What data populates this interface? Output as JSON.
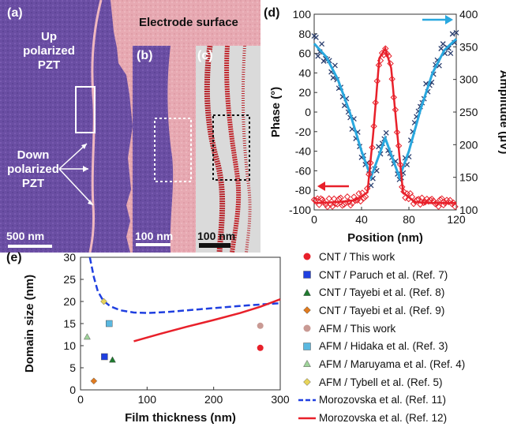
{
  "panels": {
    "a": {
      "label": "(a)",
      "up_text": "Up\npolarized\nPZT",
      "down_text": "Down\npolarized\nPZT",
      "electrode_text": "Electrode surface",
      "scale": "500 nm"
    },
    "b": {
      "label": "(b)",
      "scale": "100 nm"
    },
    "c": {
      "label": "(c)",
      "scale": "100 nm"
    },
    "d": {
      "label": "(d)"
    },
    "e": {
      "label": "(e)"
    }
  },
  "chart_data": [
    {
      "panel": "d",
      "type": "scatter",
      "xlabel": "Position (nm)",
      "ylabel_left": "Phase (°)",
      "ylabel_right": "Amplitude (μV)",
      "xlim": [
        0,
        120
      ],
      "ylim_left": [
        -100,
        100
      ],
      "ylim_right": [
        100,
        400
      ],
      "xticks": [
        "0",
        "40",
        "80",
        "120"
      ],
      "yticks_left": [
        "100",
        "80",
        "60",
        "40",
        "20",
        "0",
        "-20",
        "-40",
        "-60",
        "-80",
        "-100"
      ],
      "yticks_right": [
        "400",
        "350",
        "300",
        "250",
        "200",
        "150",
        "100"
      ],
      "series": [
        {
          "axis": "left",
          "color": "#e8202a",
          "marker": "diamond-open",
          "fit_x": [
            0,
            20,
            35,
            45,
            50,
            55,
            60,
            65,
            70,
            75,
            85,
            100,
            120
          ],
          "fit_y": [
            -93,
            -92,
            -90,
            -82,
            -20,
            55,
            65,
            45,
            -20,
            -82,
            -92,
            -93,
            -93
          ]
        },
        {
          "axis": "right",
          "color": "#2a3e6e",
          "marker": "x",
          "fit_color": "#29a8df",
          "fit_x": [
            0,
            10,
            20,
            30,
            40,
            48,
            54,
            60,
            66,
            72,
            80,
            90,
            100,
            110,
            120
          ],
          "fit_y": [
            355,
            335,
            300,
            250,
            190,
            150,
            180,
            210,
            180,
            150,
            190,
            255,
            310,
            345,
            362
          ]
        }
      ]
    },
    {
      "panel": "e",
      "type": "scatter",
      "xlabel": "Film thickness (nm)",
      "ylabel": "Domain size (nm)",
      "xlim": [
        0,
        300
      ],
      "ylim": [
        0,
        30
      ],
      "xticks": [
        "0",
        "100",
        "200",
        "300"
      ],
      "yticks": [
        "30",
        "25",
        "20",
        "15",
        "10",
        "5",
        "0"
      ],
      "points": [
        {
          "legend": "CNT / This work",
          "marker": "circle",
          "color": "#e8202a",
          "x": 270,
          "y": 9.5
        },
        {
          "legend": "CNT / Paruch et al. (Ref. 7)",
          "marker": "square",
          "color": "#1f3fe0",
          "x": 36,
          "y": 7.5
        },
        {
          "legend": "CNT / Tayebi et al. (Ref. 8)",
          "marker": "triangle",
          "color": "#1e7b2e",
          "x": 48,
          "y": 6.8
        },
        {
          "legend": "CNT / Tayebi et al. (Ref. 9)",
          "marker": "diamond",
          "color": "#e07b20",
          "x": 20,
          "y": 2
        },
        {
          "legend": "AFM / This work",
          "marker": "circle",
          "color": "#c99a94",
          "x": 270,
          "y": 14.5
        },
        {
          "legend": "AFM / Hidaka et al. (Ref. 3)",
          "marker": "square",
          "color": "#5ab8e0",
          "x": 43,
          "y": 15
        },
        {
          "legend": "AFM / Maruyama et al. (Ref. 4)",
          "marker": "triangle",
          "color": "#9fd49a",
          "x": 10,
          "y": 12
        },
        {
          "legend": "AFM / Tybell et al. (Ref. 5)",
          "marker": "diamond",
          "color": "#e7d45a",
          "x": 35,
          "y": 20
        }
      ],
      "curves": [
        {
          "legend": "Morozovska et al. (Ref. 11)",
          "style": "dashed",
          "color": "#1f3fe0",
          "x": [
            14,
            20,
            26,
            34,
            45,
            60,
            80,
            100,
            130,
            160,
            200,
            250,
            300
          ],
          "y": [
            30,
            25.5,
            22.3,
            20.2,
            18.9,
            18.0,
            17.5,
            17.4,
            17.6,
            18.0,
            18.5,
            19.1,
            19.6
          ]
        },
        {
          "legend": "Morozovska et al. (Ref. 12)",
          "style": "solid",
          "color": "#e8202a",
          "x": [
            80,
            120,
            160,
            200,
            240,
            270,
            300
          ],
          "y": [
            11.0,
            12.7,
            14.3,
            15.8,
            17.4,
            18.8,
            20.5
          ]
        }
      ]
    }
  ]
}
